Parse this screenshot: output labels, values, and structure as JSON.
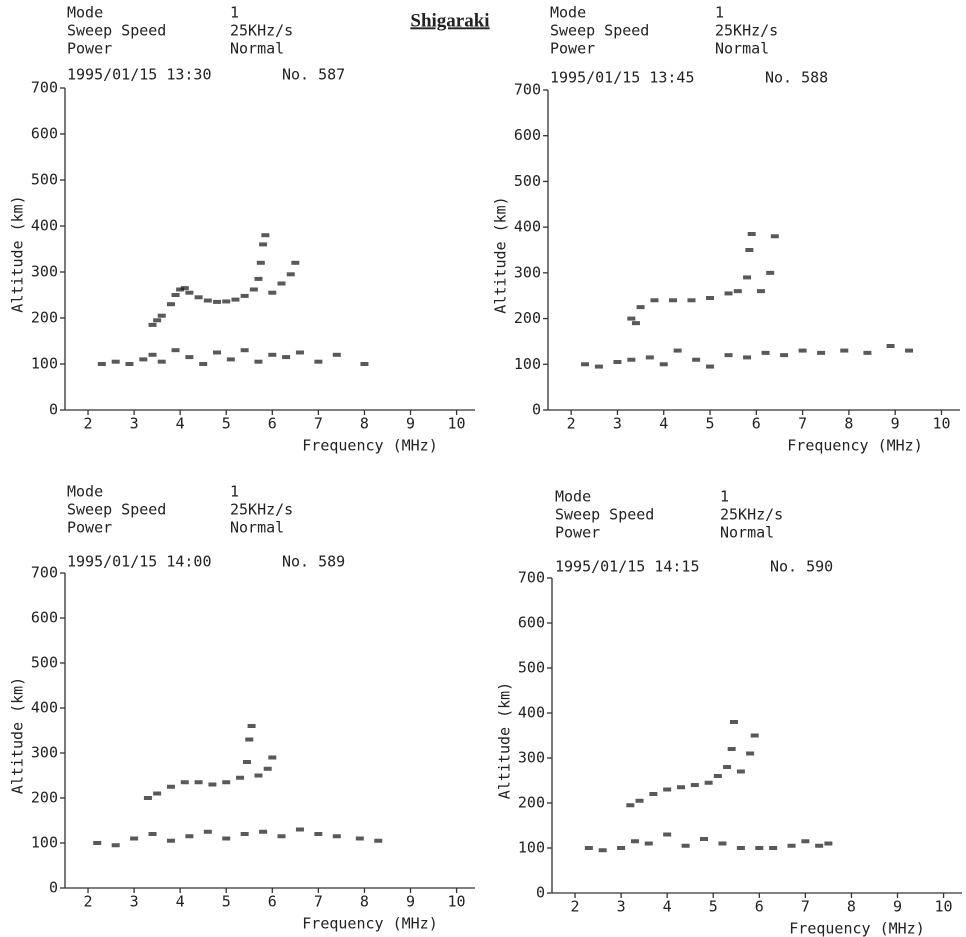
{
  "station": "Shigaraki",
  "chart_data": [
    {
      "type": "scatter",
      "header": [
        [
          "Mode",
          "1"
        ],
        [
          "Sweep Speed",
          "25KHz/s"
        ],
        [
          "Power",
          "Normal"
        ]
      ],
      "date": "1995/01/15 13:30",
      "number": "No. 587",
      "xlabel": "Frequency (MHz)",
      "ylabel": "Altitude (km)",
      "x": [
        3.4,
        3.5,
        3.6,
        3.8,
        3.9,
        4.0,
        4.1,
        4.2,
        4.4,
        4.6,
        4.8,
        5.0,
        5.2,
        5.4,
        5.6,
        5.7,
        5.75,
        5.8,
        5.85,
        6.0,
        6.2,
        6.4,
        6.5,
        2.3,
        2.6,
        2.9,
        3.2,
        3.4,
        3.6,
        3.9,
        4.2,
        4.5,
        4.8,
        5.1,
        5.4,
        5.7,
        6.0,
        6.3,
        6.6,
        7.0,
        7.4,
        8.0
      ],
      "values": [
        185,
        195,
        205,
        230,
        250,
        262,
        265,
        255,
        245,
        238,
        235,
        236,
        240,
        248,
        262,
        285,
        320,
        360,
        380,
        255,
        275,
        295,
        320,
        100,
        105,
        100,
        110,
        120,
        105,
        130,
        115,
        100,
        125,
        110,
        130,
        105,
        120,
        115,
        125,
        105,
        120,
        100
      ],
      "color": "#222",
      "xlim": [
        1.5,
        10.4
      ],
      "xticks": [
        2,
        3,
        4,
        5,
        6,
        7,
        8,
        9,
        10
      ],
      "ylim": [
        0,
        700
      ],
      "yticks": [
        0,
        100,
        200,
        300,
        400,
        500,
        600,
        700
      ]
    },
    {
      "type": "scatter",
      "header": [
        [
          "Mode",
          "1"
        ],
        [
          "Sweep Speed",
          "25KHz/s"
        ],
        [
          "Power",
          "Normal"
        ]
      ],
      "date": "1995/01/15 13:45",
      "number": "No. 588",
      "xlabel": "Frequency (MHz)",
      "ylabel": "Altitude (km)",
      "x": [
        3.3,
        3.4,
        3.5,
        3.8,
        4.2,
        4.6,
        5.0,
        5.4,
        5.6,
        5.8,
        5.85,
        5.9,
        6.1,
        6.3,
        6.4,
        2.3,
        2.6,
        3.0,
        3.3,
        3.7,
        4.0,
        4.3,
        4.7,
        5.0,
        5.4,
        5.8,
        6.2,
        6.6,
        7.0,
        7.4,
        7.9,
        8.4,
        8.9,
        9.3
      ],
      "values": [
        200,
        190,
        225,
        240,
        240,
        240,
        245,
        255,
        260,
        290,
        350,
        385,
        260,
        300,
        380,
        100,
        95,
        105,
        110,
        115,
        100,
        130,
        110,
        95,
        120,
        115,
        125,
        120,
        130,
        125,
        130,
        125,
        140,
        130
      ],
      "color": "#222",
      "xlim": [
        1.5,
        10.4
      ],
      "xticks": [
        2,
        3,
        4,
        5,
        6,
        7,
        8,
        9,
        10
      ],
      "ylim": [
        0,
        700
      ],
      "yticks": [
        0,
        100,
        200,
        300,
        400,
        500,
        600,
        700
      ]
    },
    {
      "type": "scatter",
      "header": [
        [
          "Mode",
          "1"
        ],
        [
          "Sweep Speed",
          "25KHz/s"
        ],
        [
          "Power",
          "Normal"
        ]
      ],
      "date": "1995/01/15 14:00",
      "number": "No. 589",
      "xlabel": "Frequency (MHz)",
      "ylabel": "Altitude (km)",
      "x": [
        3.3,
        3.5,
        3.8,
        4.1,
        4.4,
        4.7,
        5.0,
        5.3,
        5.45,
        5.5,
        5.55,
        5.7,
        5.9,
        6.0,
        2.2,
        2.6,
        3.0,
        3.4,
        3.8,
        4.2,
        4.6,
        5.0,
        5.4,
        5.8,
        6.2,
        6.6,
        7.0,
        7.4,
        7.9,
        8.3
      ],
      "values": [
        200,
        210,
        225,
        235,
        235,
        230,
        235,
        245,
        280,
        330,
        360,
        250,
        265,
        290,
        100,
        95,
        110,
        120,
        105,
        115,
        125,
        110,
        120,
        125,
        115,
        130,
        120,
        115,
        110,
        105
      ],
      "color": "#222",
      "xlim": [
        1.5,
        10.4
      ],
      "xticks": [
        2,
        3,
        4,
        5,
        6,
        7,
        8,
        9,
        10
      ],
      "ylim": [
        0,
        700
      ],
      "yticks": [
        0,
        100,
        200,
        300,
        400,
        500,
        600,
        700
      ]
    },
    {
      "type": "scatter",
      "header": [
        [
          "Mode",
          "1"
        ],
        [
          "Sweep Speed",
          "25KHz/s"
        ],
        [
          "Power",
          "Normal"
        ]
      ],
      "date": "1995/01/15 14:15",
      "number": "No. 590",
      "xlabel": "Frequency (MHz)",
      "ylabel": "Altitude (km)",
      "x": [
        3.2,
        3.4,
        3.7,
        4.0,
        4.3,
        4.6,
        4.9,
        5.1,
        5.3,
        5.4,
        5.45,
        5.6,
        5.8,
        5.9,
        2.3,
        2.6,
        3.0,
        3.3,
        3.6,
        4.0,
        4.4,
        4.8,
        5.2,
        5.6,
        6.0,
        6.3,
        6.7,
        7.0,
        7.3,
        7.5
      ],
      "values": [
        195,
        205,
        220,
        230,
        235,
        240,
        245,
        260,
        280,
        320,
        380,
        270,
        310,
        350,
        100,
        95,
        100,
        115,
        110,
        130,
        105,
        120,
        110,
        100,
        100,
        100,
        105,
        115,
        105,
        110
      ],
      "color": "#222",
      "xlim": [
        1.5,
        10.4
      ],
      "xticks": [
        2,
        3,
        4,
        5,
        6,
        7,
        8,
        9,
        10
      ],
      "ylim": [
        0,
        700
      ],
      "yticks": [
        0,
        100,
        200,
        300,
        400,
        500,
        600,
        700
      ]
    }
  ]
}
